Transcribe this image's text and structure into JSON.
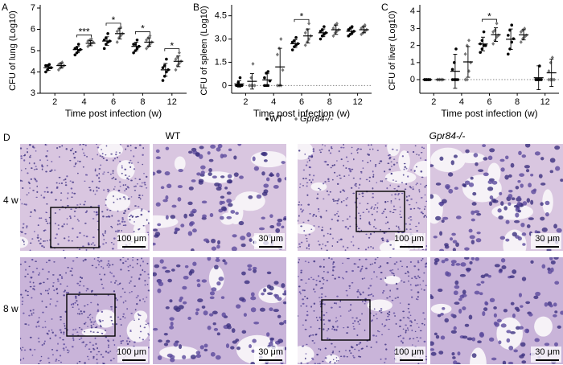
{
  "chart_data": [
    {
      "type": "dot",
      "panel_label": "A",
      "ylabel": "CFU of lung (Log10)",
      "xlabel": "Time post infection (w)",
      "categories": [
        "2",
        "4",
        "6",
        "8",
        "12"
      ],
      "ylim": [
        3,
        7
      ],
      "yticks": [
        3,
        4,
        5,
        6,
        7
      ],
      "significance": [
        null,
        "***",
        "*",
        "*",
        "*"
      ],
      "zero_line": false,
      "series": [
        {
          "name": "WT",
          "color": "#000000",
          "values": [
            4.2,
            5.05,
            5.45,
            5.2,
            4.1
          ],
          "errors": [
            0.13,
            0.15,
            0.2,
            0.2,
            0.3
          ],
          "points": [
            [
              4.0,
              4.1,
              4.2,
              4.2,
              4.3,
              4.3,
              4.35
            ],
            [
              4.8,
              4.9,
              5.0,
              5.05,
              5.1,
              5.15,
              5.3
            ],
            [
              5.1,
              5.3,
              5.4,
              5.45,
              5.5,
              5.6,
              5.8
            ],
            [
              4.9,
              5.0,
              5.1,
              5.2,
              5.3,
              5.3,
              5.5
            ],
            [
              3.6,
              3.8,
              4.0,
              4.1,
              4.2,
              4.3,
              4.6
            ]
          ]
        },
        {
          "name": "Gpr84-/-",
          "color": "#777777",
          "values": [
            4.3,
            5.35,
            5.8,
            5.4,
            4.5
          ],
          "errors": [
            0.12,
            0.12,
            0.25,
            0.2,
            0.25
          ],
          "points": [
            [
              4.1,
              4.2,
              4.25,
              4.3,
              4.35,
              4.4,
              4.45
            ],
            [
              5.2,
              5.3,
              5.35,
              5.4,
              5.45,
              5.5,
              5.55
            ],
            [
              5.4,
              5.6,
              5.7,
              5.8,
              5.9,
              6.0,
              6.1
            ],
            [
              5.1,
              5.2,
              5.3,
              5.4,
              5.5,
              5.6,
              5.7
            ],
            [
              4.1,
              4.3,
              4.4,
              4.5,
              4.6,
              4.7,
              4.9
            ]
          ]
        }
      ]
    },
    {
      "type": "dot",
      "panel_label": "B",
      "ylabel": "CFU of spleen (Log10)",
      "xlabel": "Time post infection (w)",
      "categories": [
        "2",
        "4",
        "6",
        "8",
        "12"
      ],
      "ylim": [
        -0.5,
        5
      ],
      "yticks": [
        0,
        1.5,
        {
          "value": 3,
          "label": "3.0"
        },
        4.5
      ],
      "significance": [
        null,
        null,
        "*",
        null,
        null
      ],
      "zero_line": true,
      "series": [
        {
          "color": "#000000",
          "values": [
            0.1,
            0.36,
            2.7,
            3.4,
            3.5
          ],
          "errors": [
            0.2,
            0.4,
            0.25,
            0.25,
            0.2
          ],
          "points": [
            [
              0,
              0,
              0,
              0,
              0,
              0.2,
              0.5
            ],
            [
              0,
              0,
              0,
              0.3,
              0.5,
              0.8,
              0.9
            ],
            [
              2.3,
              2.5,
              2.6,
              2.7,
              2.8,
              2.9,
              3.1
            ],
            [
              3.0,
              3.2,
              3.3,
              3.4,
              3.5,
              3.6,
              3.8
            ],
            [
              3.2,
              3.3,
              3.4,
              3.5,
              3.6,
              3.7,
              3.8
            ]
          ]
        },
        {
          "color": "#777777",
          "values": [
            0.27,
            1.2,
            3.2,
            3.6,
            3.6
          ],
          "errors": [
            0.5,
            1.2,
            0.45,
            0.3,
            0.2
          ],
          "points": [
            [
              0,
              0,
              0,
              0,
              0,
              0.5,
              1.4
            ],
            [
              0,
              0,
              0,
              1.0,
              2.0,
              2.4,
              3.0
            ],
            [
              2.6,
              2.8,
              3.0,
              3.2,
              3.4,
              3.6,
              4.0
            ],
            [
              3.2,
              3.4,
              3.5,
              3.6,
              3.7,
              3.9,
              4.0
            ],
            [
              3.3,
              3.4,
              3.5,
              3.6,
              3.7,
              3.8,
              3.9
            ]
          ]
        }
      ]
    },
    {
      "type": "dot",
      "panel_label": "C",
      "ylabel": "CFU of liver (Log10)",
      "xlabel": "Time post infection (w)",
      "categories": [
        "2",
        "4",
        "6",
        "8",
        "12"
      ],
      "ylim": [
        -0.8,
        4.2
      ],
      "yticks": [
        0,
        1,
        2,
        3,
        4
      ],
      "significance": [
        null,
        null,
        "*",
        null,
        null
      ],
      "zero_line": true,
      "series": [
        {
          "color": "#000000",
          "values": [
            0,
            0.49,
            2.09,
            2.37,
            0.11
          ],
          "errors": [
            0,
            1.0,
            0.4,
            0.6,
            0.7
          ],
          "points": [
            [
              0,
              0,
              0,
              0,
              0,
              0,
              0
            ],
            [
              0,
              0,
              0,
              0,
              0.6,
              1.0,
              1.8
            ],
            [
              1.6,
              1.8,
              2.0,
              2.0,
              2.1,
              2.3,
              2.8
            ],
            [
              1.5,
              1.8,
              2.2,
              2.4,
              2.6,
              2.9,
              3.2
            ],
            [
              0,
              0,
              0,
              0,
              0,
              0,
              0.8
            ]
          ]
        },
        {
          "color": "#777777",
          "values": [
            0,
            1.04,
            2.64,
            2.63,
            0.4
          ],
          "errors": [
            0,
            0.9,
            0.4,
            0.3,
            0.8
          ],
          "points": [
            [
              0,
              0,
              0,
              0,
              0,
              0,
              0
            ],
            [
              0,
              0,
              0.5,
              1.0,
              1.5,
              2.0,
              2.3
            ],
            [
              2.1,
              2.3,
              2.5,
              2.6,
              2.8,
              2.9,
              3.3
            ],
            [
              2.2,
              2.4,
              2.5,
              2.6,
              2.8,
              2.9,
              3.0
            ],
            [
              0,
              0,
              0,
              0,
              0.5,
              1.0,
              1.3
            ]
          ]
        }
      ]
    }
  ],
  "panel_d": {
    "label": "D",
    "columns": [
      "WT",
      "Gpr84-/-"
    ],
    "rows": [
      "4 w",
      "8 w"
    ],
    "scale_bars": [
      "100 μm",
      "30 μm"
    ]
  }
}
